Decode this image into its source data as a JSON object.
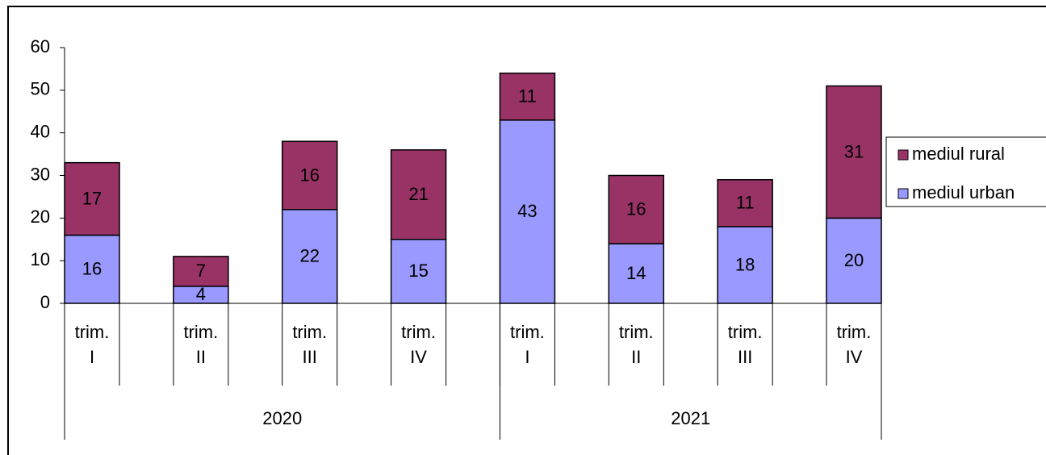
{
  "chart_data": {
    "type": "stacked_bar",
    "categories": [
      "trim.\nI",
      "trim.\nII",
      "trim.\nIII",
      "trim.\nIV",
      "trim.\nI",
      "trim.\nII",
      "trim.\nIII",
      "trim.\nIV"
    ],
    "group_labels": [
      "2020",
      "2021"
    ],
    "series": [
      {
        "name": "mediul urban",
        "color": "#9999ff",
        "values": [
          16,
          4,
          22,
          15,
          43,
          14,
          18,
          20
        ]
      },
      {
        "name": "mediul rural",
        "color": "#993366",
        "values": [
          17,
          7,
          16,
          21,
          11,
          16,
          11,
          31
        ]
      }
    ],
    "ylim": [
      0,
      60
    ],
    "yticks": [
      0,
      10,
      20,
      30,
      40,
      50,
      60
    ],
    "legend": "right"
  }
}
